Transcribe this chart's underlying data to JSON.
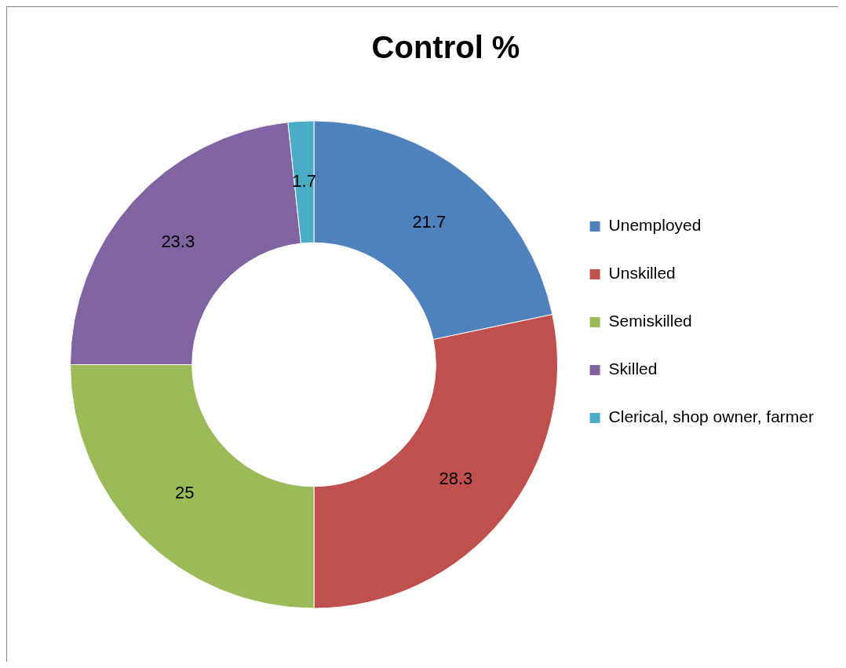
{
  "chart_data": {
    "type": "donut",
    "title": "Control %",
    "categories": [
      "Unemployed",
      "Unskilled",
      "Semiskilled",
      "Skilled",
      "Clerical, shop owner, farmer"
    ],
    "values": [
      21.7,
      28.3,
      25,
      23.3,
      1.7
    ],
    "colors": [
      "#4f81bd",
      "#c0504d",
      "#9bbb59",
      "#8064a2",
      "#4bacc6"
    ],
    "data_labels": true,
    "legend": "right"
  }
}
